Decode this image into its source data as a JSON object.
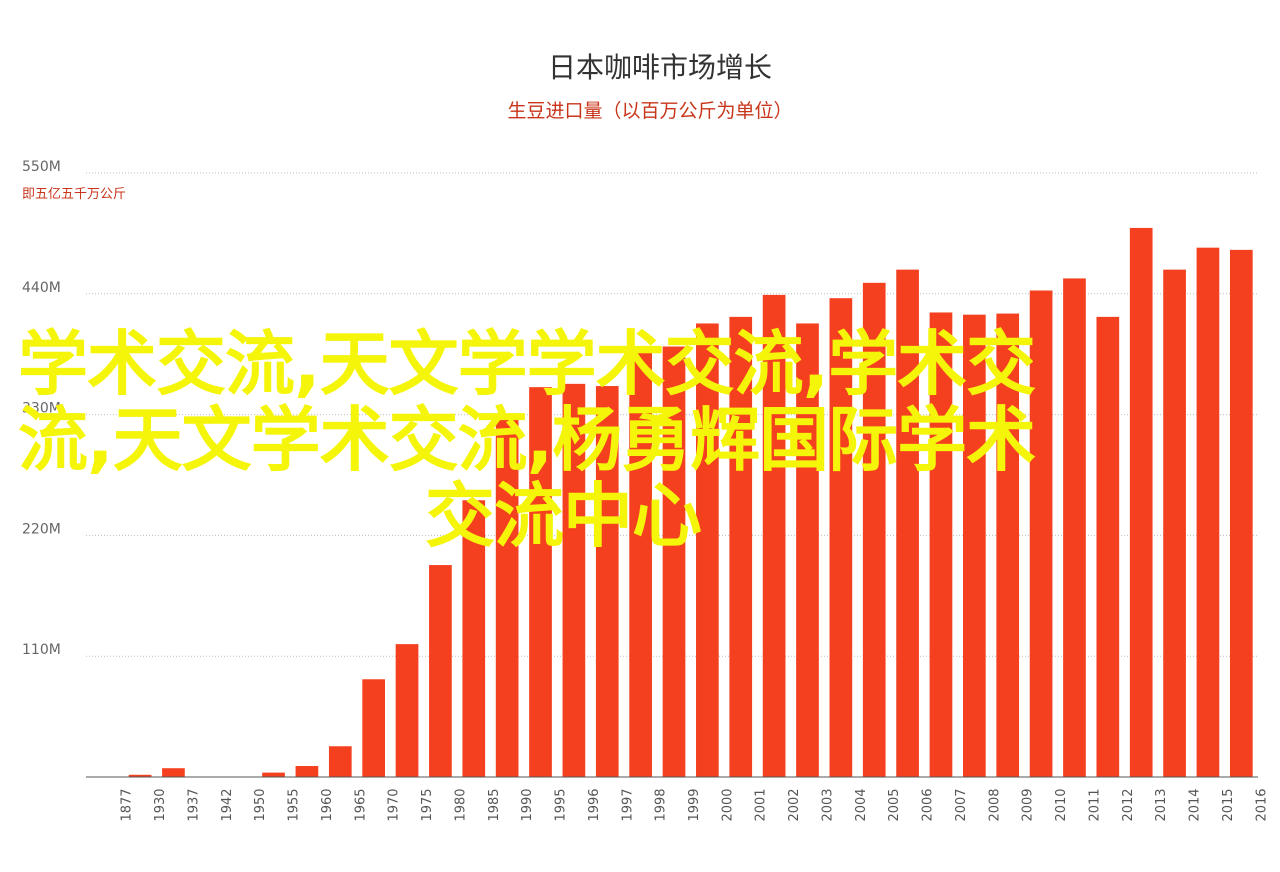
{
  "chart_data": {
    "type": "bar",
    "title": "日本咖啡市场增长",
    "subtitle": "生豆进口量（以百万公斤为单位）",
    "ylabel_note": "即五亿五千万公斤",
    "y_ticks": [
      "550M",
      "440M",
      "330M",
      "220M",
      "110M"
    ],
    "y_tick_values": [
      550,
      440,
      330,
      220,
      110
    ],
    "ylim": [
      0,
      550
    ],
    "grid": true,
    "bar_color": "#f5401f",
    "categories": [
      "1877",
      "1930",
      "1937",
      "1942",
      "1950",
      "1955",
      "1960",
      "1965",
      "1970",
      "1975",
      "1980",
      "1985",
      "1990",
      "1995",
      "1996",
      "1997",
      "1998",
      "1999",
      "2000",
      "2001",
      "2002",
      "2003",
      "2004",
      "2005",
      "2006",
      "2007",
      "2008",
      "2009",
      "2010",
      "2011",
      "2012",
      "2013",
      "2014",
      "2015",
      "2016"
    ],
    "values": [
      0,
      2,
      8,
      0,
      0,
      4,
      10,
      28,
      89,
      121,
      193,
      252,
      328,
      355,
      358,
      356,
      388,
      392,
      413,
      419,
      439,
      413,
      436,
      450,
      462,
      423,
      421,
      422,
      443,
      454,
      419,
      500,
      462,
      482,
      480
    ]
  },
  "overlay_text": {
    "color": "#f5f50a",
    "line1": "学术交流,天文学学术交流,学术交",
    "line2": "流,天文学术交流,杨勇辉国际学术",
    "line3": "交流中心"
  }
}
